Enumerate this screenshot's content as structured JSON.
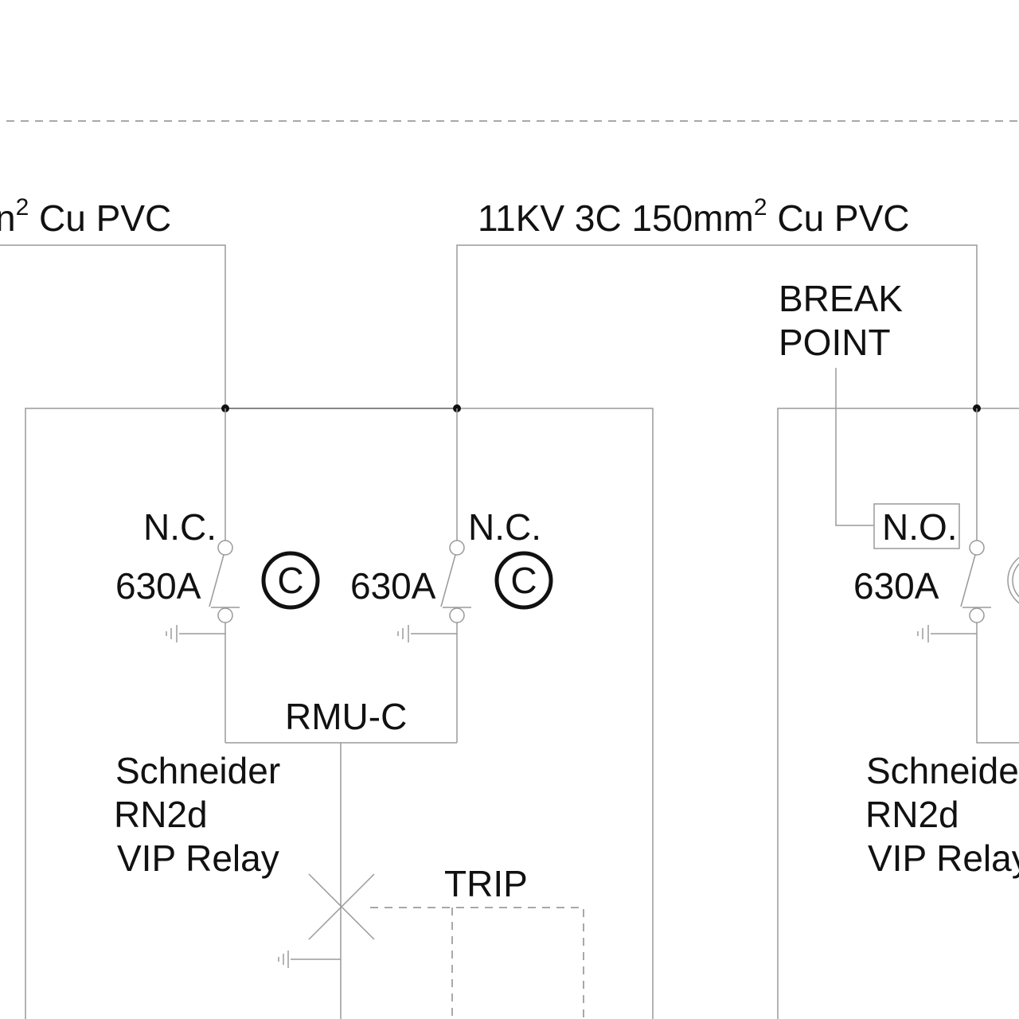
{
  "cables": {
    "left_partial": {
      "main": "n",
      "sup": "2",
      "tail": " Cu PVC"
    },
    "right": {
      "main": "11KV 3C 150mm",
      "sup": "2",
      "tail": " Cu PVC"
    }
  },
  "break_point": {
    "line1": "BREAK",
    "line2": "POINT"
  },
  "switches": [
    {
      "state": "N.C.",
      "rating": "630A",
      "symbol": "C"
    },
    {
      "state": "N.C.",
      "rating": "630A",
      "symbol": "C"
    },
    {
      "state": "N.O.",
      "rating": "630A"
    }
  ],
  "rmu_label": "RMU-C",
  "relays": [
    {
      "line1": "Schneider",
      "line2": "RN2d",
      "line3": "VIP Relay"
    },
    {
      "line1": "Schneide",
      "line2": "RN2d",
      "line3": "VIP Relay"
    }
  ],
  "trip_label": "TRIP"
}
